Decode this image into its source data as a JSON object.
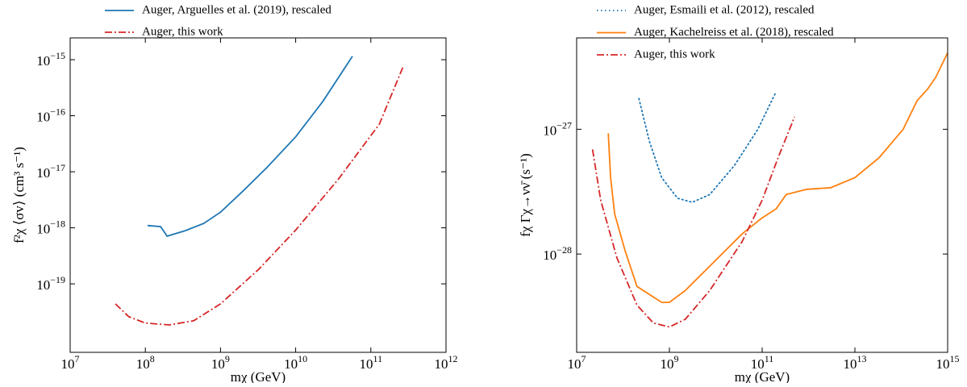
{
  "chart_data": [
    {
      "type": "line",
      "xlabel": "mχ (GeV)",
      "ylabel": "f²χ ⟨σv⟩ (cm³ s⁻¹)",
      "xscale": "log",
      "yscale": "log",
      "legend": "above",
      "xlim": [
        10000000.0,
        1000000000000.0
      ],
      "ylim": [
        6e-21,
        2.45e-15
      ],
      "xticks": [
        {
          "value": 10000000.0,
          "label": "107"
        },
        {
          "value": 100000000.0,
          "label": "108"
        },
        {
          "value": 1000000000.0,
          "label": "109"
        },
        {
          "value": 10000000000.0,
          "label": "1010"
        },
        {
          "value": 100000000000.0,
          "label": "1011"
        },
        {
          "value": 1000000000000.0,
          "label": "1012"
        }
      ],
      "yticks": [
        {
          "value": 1e-19,
          "label": "10−19"
        },
        {
          "value": 1e-18,
          "label": "10−18"
        },
        {
          "value": 1e-17,
          "label": "10−17"
        },
        {
          "value": 1e-16,
          "label": "10−16"
        },
        {
          "value": 1e-15,
          "label": "10−15"
        }
      ],
      "series": [
        {
          "name": "Auger, Arguelles et al. (2019), rescaled",
          "color": "#1f77b4",
          "linestyle": "solid",
          "x": [
            107000000.0,
            160000000.0,
            195000000.0,
            340000000.0,
            600000000.0,
            1000000000.0,
            1950000000.0,
            4100000000.0,
            10000000000.0,
            23000000000.0,
            57000000000.0
          ],
          "values": [
            1.1e-18,
            1.05e-18,
            7.1e-19,
            8.9e-19,
            1.2e-18,
            1.9e-18,
            4.4e-18,
            1.17e-17,
            4.2e-17,
            1.8e-16,
            1.15e-15
          ]
        },
        {
          "name": "Auger, this work",
          "color": "#d62728",
          "linestyle": "dashdot",
          "x": [
            40000000.0,
            60000000.0,
            100000000.0,
            210000000.0,
            440000000.0,
            1000000000.0,
            3200000000.0,
            10000000000.0,
            37000000000.0,
            130000000000.0,
            270000000000.0
          ],
          "values": [
            4.4e-20,
            2.6e-20,
            2e-20,
            1.85e-20,
            2.2e-20,
            4.4e-20,
            1.8e-19,
            9.1e-19,
            7.4e-18,
            7.1e-17,
            7.6e-16
          ]
        }
      ]
    },
    {
      "type": "line",
      "xlabel": "mχ (GeV)",
      "ylabel": "fχ Γχ→νν̄ (s⁻¹)",
      "xscale": "log",
      "yscale": "log",
      "legend": "upper left",
      "xlim": [
        10000000.0,
        1000000000000000.0
      ],
      "ylim": [
        1.63e-29,
        5.4e-27
      ],
      "xticks": [
        {
          "value": 10000000.0,
          "label": "107"
        },
        {
          "value": 1000000000.0,
          "label": "109"
        },
        {
          "value": 100000000000.0,
          "label": "1011"
        },
        {
          "value": 10000000000000.0,
          "label": "1013"
        },
        {
          "value": 1000000000000000.0,
          "label": "1015"
        }
      ],
      "yticks": [
        {
          "value": 1e-28,
          "label": "10−28"
        },
        {
          "value": 1e-27,
          "label": "10−27"
        }
      ],
      "series": [
        {
          "name": "Auger, Esmaili et al. (2012), rescaled",
          "color": "#1f77b4",
          "linestyle": "dotted",
          "x": [
            220000000.0,
            370000000.0,
            680000000.0,
            1500000000.0,
            3100000000.0,
            7400000000.0,
            25000000000.0,
            81000000000.0,
            200000000000.0
          ],
          "values": [
            1.76e-27,
            8e-28,
            4.1e-28,
            2.8e-28,
            2.6e-28,
            3e-28,
            5.1e-28,
            1e-27,
            2e-27
          ]
        },
        {
          "name": "Auger, Kachelreiss et al. (2018), rescaled",
          "color": "#ff7f0e",
          "linestyle": "solid",
          "x": [
            48000000.0,
            54000000.0,
            66000000.0,
            110000000.0,
            200000000.0,
            680000000.0,
            1000000000.0,
            2200000000.0,
            7400000000.0,
            37000000000.0,
            100000000000.0,
            200000000000.0,
            330000000000.0,
            910000000000.0,
            3000000000000.0,
            10000000000000.0,
            33000000000000.0,
            110000000000000.0,
            220000000000000.0,
            370000000000000.0,
            550000000000000.0,
            1000000000000000.0
          ],
          "values": [
            9.3e-28,
            4.1e-28,
            2.1e-28,
            1.07e-28,
            5.5e-29,
            4.1e-29,
            4.1e-29,
            5.1e-29,
            8e-29,
            1.45e-28,
            1.95e-28,
            2.3e-28,
            3e-28,
            3.3e-28,
            3.4e-28,
            4.1e-28,
            5.9e-28,
            1e-27,
            1.7e-27,
            2.1e-27,
            2.6e-27,
            4.1e-27
          ]
        },
        {
          "name": "Auger, this work",
          "color": "#d62728",
          "linestyle": "dashdot",
          "x": [
            22000000.0,
            33000000.0,
            74000000.0,
            200000000.0,
            450000000.0,
            1000000000.0,
            2200000000.0,
            7400000000.0,
            37000000000.0,
            100000000000.0,
            220000000000.0,
            500000000000.0
          ],
          "values": [
            6.9e-28,
            2.7e-28,
            9.3e-29,
            3.9e-29,
            2.8e-29,
            2.6e-29,
            3e-29,
            5.1e-29,
            1.26e-28,
            2.7e-28,
            5.9e-28,
            1.26e-27
          ]
        }
      ]
    }
  ]
}
